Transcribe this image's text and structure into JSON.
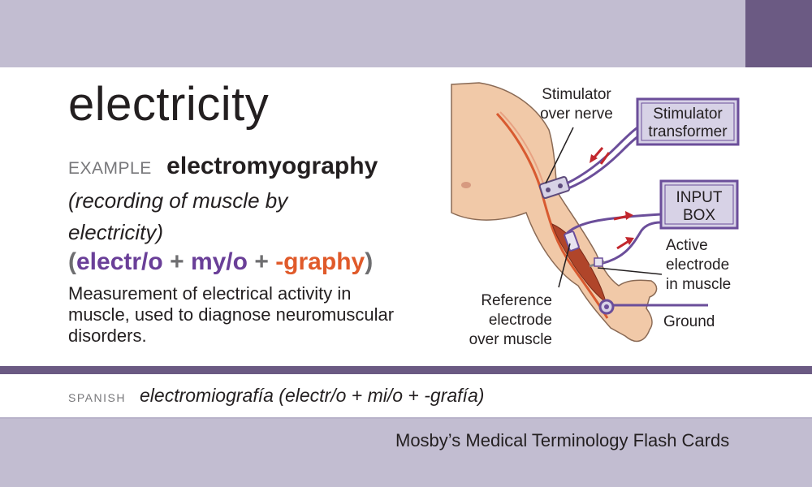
{
  "card": {
    "term": "electricity",
    "example_label": "EXAMPLE",
    "example_word": "electromyography",
    "gloss": "(recording of muscle by electricity)",
    "parts": {
      "open": "(",
      "part1": "electr/o",
      "plus1": "+",
      "part2": "my/o",
      "plus2": "+",
      "part3": "-graphy",
      "close": ")"
    },
    "definition": "Measurement of electrical activity in muscle, used to diagnose neuromuscular disorders."
  },
  "illustration": {
    "stimulator_over_nerve": [
      "Stimulator",
      "over nerve"
    ],
    "stimulator_transformer": [
      "Stimulator",
      "transformer"
    ],
    "input_box": [
      "INPUT",
      "BOX"
    ],
    "active_electrode": [
      "Active",
      "electrode",
      "in muscle"
    ],
    "reference_electrode": [
      "Reference",
      "electrode",
      "over muscle"
    ],
    "ground": "Ground"
  },
  "spanish": {
    "label": "SPANISH",
    "text": "electromiografía (electr/o + mi/o + -grafía)"
  },
  "brand": "Mosby’s Medical Terminology Flash Cards",
  "colors": {
    "band": "#c2bdd1",
    "dark_purple": "#6b5a83",
    "prefix_purple": "#6a3f98",
    "suffix_orange": "#e05a2a"
  }
}
